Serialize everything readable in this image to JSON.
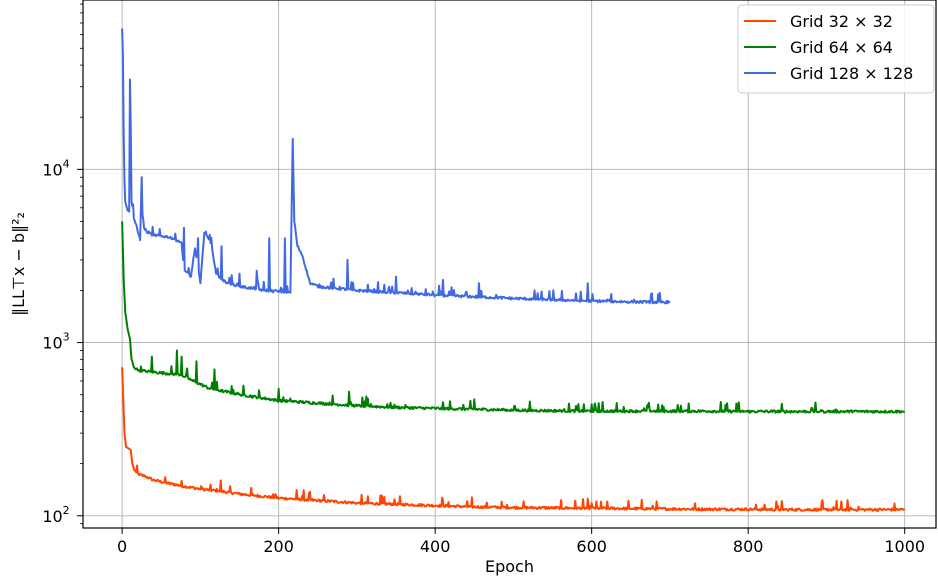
{
  "chart_data": {
    "type": "line",
    "title": "",
    "xlabel": "Epoch",
    "ylabel": "‖LL⊤x − b‖²₂",
    "xscale": "linear",
    "yscale": "log",
    "xlim": [
      -50,
      1040
    ],
    "ylim": [
      85,
      95000
    ],
    "xticks": [
      0,
      200,
      400,
      600,
      800,
      1000
    ],
    "xtick_labels": [
      "0",
      "200",
      "400",
      "600",
      "800",
      "1000"
    ],
    "yticks": [
      100,
      1000,
      10000
    ],
    "ytick_labels": [
      {
        "base": "10",
        "exp": "2"
      },
      {
        "base": "10",
        "exp": "3"
      },
      {
        "base": "10",
        "exp": "4"
      }
    ],
    "grid": true,
    "legend_position": "top-right",
    "series": [
      {
        "name": "Grid 32 × 32",
        "color": "#ff4500",
        "points": [
          [
            0,
            720
          ],
          [
            3,
            300
          ],
          [
            5,
            250
          ],
          [
            8,
            245
          ],
          [
            11,
            240
          ],
          [
            13,
            200
          ],
          [
            15,
            185
          ],
          [
            18,
            178
          ],
          [
            22,
            172
          ],
          [
            26,
            170
          ],
          [
            30,
            168
          ],
          [
            40,
            160
          ],
          [
            60,
            153
          ],
          [
            80,
            147
          ],
          [
            100,
            142
          ],
          [
            125,
            138
          ],
          [
            150,
            133
          ],
          [
            200,
            126
          ],
          [
            250,
            122
          ],
          [
            300,
            118
          ],
          [
            350,
            116
          ],
          [
            400,
            114
          ],
          [
            450,
            112
          ],
          [
            500,
            111
          ],
          [
            550,
            110.5
          ],
          [
            600,
            110
          ],
          [
            650,
            109.5
          ],
          [
            700,
            109
          ],
          [
            750,
            108.5
          ],
          [
            800,
            108.5
          ],
          [
            850,
            108
          ],
          [
            900,
            108
          ],
          [
            950,
            108
          ],
          [
            1000,
            108
          ]
        ],
        "spikes": [
          [
            126,
            160
          ],
          [
            230,
            130
          ],
          [
            410,
            122
          ],
          [
            600,
            118
          ],
          [
            838,
            114
          ]
        ]
      },
      {
        "name": "Grid 64 × 64",
        "color": "#008000",
        "points": [
          [
            0,
            5000
          ],
          [
            2,
            2300
          ],
          [
            4,
            1500
          ],
          [
            7,
            1200
          ],
          [
            10,
            1050
          ],
          [
            12,
            800
          ],
          [
            15,
            720
          ],
          [
            20,
            690
          ],
          [
            30,
            680
          ],
          [
            50,
            665
          ],
          [
            75,
            650
          ],
          [
            90,
            600
          ],
          [
            110,
            545
          ],
          [
            130,
            520
          ],
          [
            150,
            500
          ],
          [
            200,
            460
          ],
          [
            250,
            445
          ],
          [
            300,
            430
          ],
          [
            350,
            420
          ],
          [
            400,
            415
          ],
          [
            450,
            410
          ],
          [
            500,
            405
          ],
          [
            550,
            402
          ],
          [
            600,
            400
          ],
          [
            650,
            400
          ],
          [
            700,
            400
          ],
          [
            750,
            400
          ],
          [
            800,
            398
          ],
          [
            850,
            398
          ],
          [
            900,
            398
          ],
          [
            950,
            398
          ],
          [
            1000,
            398
          ]
        ],
        "spikes": [
          [
            38,
            830
          ],
          [
            70,
            900
          ],
          [
            76,
            830
          ],
          [
            95,
            780
          ],
          [
            118,
            700
          ],
          [
            140,
            560
          ],
          [
            200,
            540
          ],
          [
            290,
            520
          ],
          [
            450,
            470
          ],
          [
            600,
            440
          ],
          [
            785,
            445
          ]
        ]
      },
      {
        "name": "Grid 128 × 128",
        "color": "#4169e1",
        "points": [
          [
            0,
            65000
          ],
          [
            1,
            45000
          ],
          [
            2,
            16000
          ],
          [
            3,
            8500
          ],
          [
            4,
            6500
          ],
          [
            7,
            5800
          ],
          [
            9,
            5700
          ],
          [
            10,
            33000
          ],
          [
            11,
            18000
          ],
          [
            12,
            6500
          ],
          [
            15,
            5200
          ],
          [
            19,
            4600
          ],
          [
            23,
            3900
          ],
          [
            25,
            9000
          ],
          [
            26,
            5500
          ],
          [
            28,
            4600
          ],
          [
            32,
            4300
          ],
          [
            40,
            4150
          ],
          [
            60,
            4050
          ],
          [
            75,
            3800
          ],
          [
            80,
            2600
          ],
          [
            88,
            2400
          ],
          [
            93,
            3500
          ],
          [
            100,
            2200
          ],
          [
            105,
            4300
          ],
          [
            110,
            4000
          ],
          [
            115,
            3500
          ],
          [
            120,
            2500
          ],
          [
            130,
            2250
          ],
          [
            150,
            2100
          ],
          [
            180,
            2000
          ],
          [
            200,
            1960
          ],
          [
            215,
            1940
          ],
          [
            218,
            15000
          ],
          [
            220,
            5000
          ],
          [
            224,
            3600
          ],
          [
            230,
            3200
          ],
          [
            240,
            2200
          ],
          [
            250,
            2100
          ],
          [
            300,
            1990
          ],
          [
            350,
            1930
          ],
          [
            400,
            1870
          ],
          [
            450,
            1830
          ],
          [
            500,
            1790
          ],
          [
            550,
            1760
          ],
          [
            600,
            1730
          ],
          [
            650,
            1710
          ],
          [
            700,
            1700
          ]
        ],
        "spikes": [
          [
            79,
            4600
          ],
          [
            97,
            4000
          ],
          [
            127,
            3600
          ],
          [
            150,
            2500
          ],
          [
            172,
            2600
          ],
          [
            188,
            4000
          ],
          [
            208,
            4000
          ],
          [
            288,
            3000
          ],
          [
            350,
            2400
          ],
          [
            410,
            2300
          ],
          [
            456,
            2200
          ],
          [
            595,
            2200
          ]
        ]
      }
    ]
  }
}
